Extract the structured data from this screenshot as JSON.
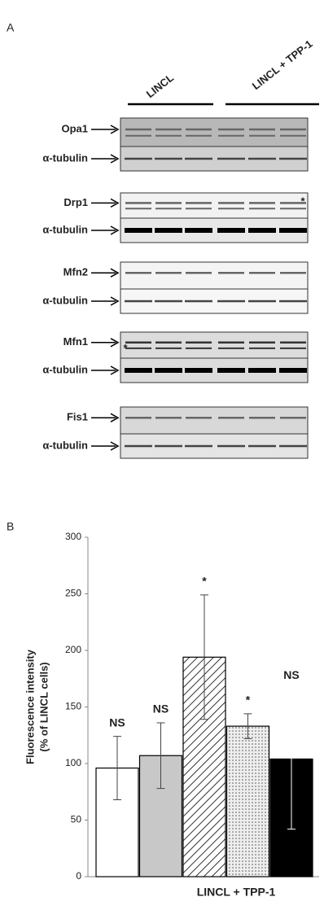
{
  "panels": [
    "A",
    "B"
  ],
  "groups": [
    "LINCL",
    "LINCL + TPP-1"
  ],
  "blots": [
    {
      "label": "Opa1",
      "loading": "α-tubulin"
    },
    {
      "label": "Drp1",
      "loading": "α-tubulin",
      "marker": "*"
    },
    {
      "label": "Mfn2",
      "loading": "α-tubulin"
    },
    {
      "label": "Mfn1",
      "loading": "α-tubulin",
      "marker": "*"
    },
    {
      "label": "Fis1",
      "loading": "α-tubulin"
    }
  ],
  "chart_data": {
    "type": "bar",
    "ylabel": [
      "Fluorescence intensity",
      "(% of LINCL cells)"
    ],
    "xlabel": "LINCL + TPP-1",
    "values": [
      96,
      107,
      194,
      133,
      104
    ],
    "errors": [
      28,
      29,
      55,
      11,
      62
    ],
    "annotations": [
      "NS",
      "NS",
      "*",
      "*",
      "NS"
    ],
    "colors": [
      "#ffffff",
      "#c8c8c8",
      "#ffffff",
      "#e8e8e8",
      "#000000"
    ],
    "patterns": [
      "none",
      "none",
      "diagonal",
      "dots",
      "none"
    ],
    "ylim": [
      0,
      300
    ],
    "yticks": [
      0,
      50,
      100,
      150,
      200,
      250,
      300
    ]
  }
}
